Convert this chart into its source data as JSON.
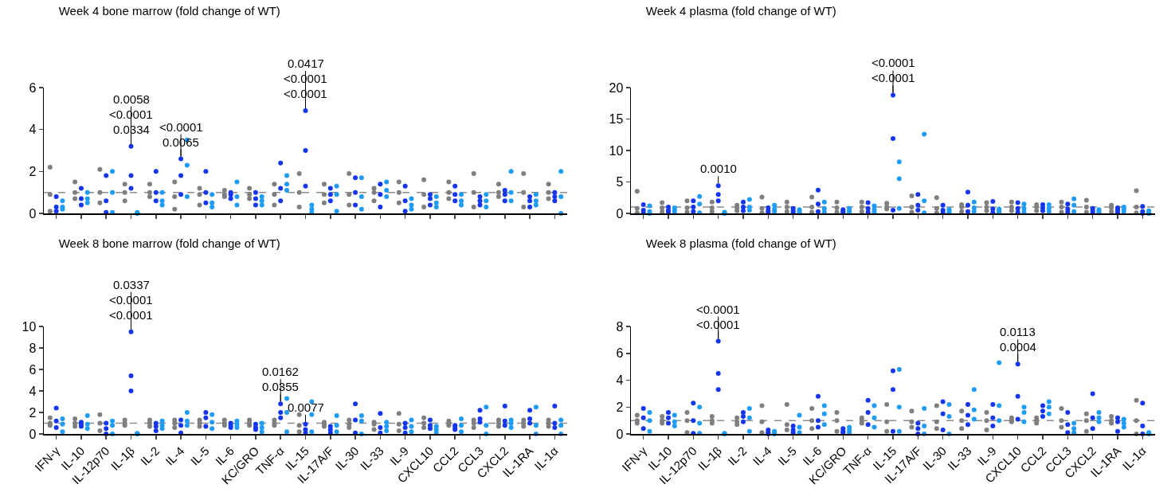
{
  "chart_data": [
    {
      "type": "scatter",
      "title": "Week 4 bone marrow (fold change of WT)",
      "tick_labels": "y",
      "marker": "circle",
      "ylim": [
        0,
        6
      ],
      "yticks": [
        0,
        2,
        4,
        6
      ],
      "categories": [
        "IFN-γ",
        "IL-10",
        "IL-12p70",
        "IL-1β",
        "IL-2",
        "IL-4",
        "IL-5",
        "IL-6",
        "KC/GRO",
        "TNF-α",
        "IL-15",
        "IL-17A/F",
        "IL-30",
        "IL-33",
        "IL-9",
        "CXCL10",
        "CCL2",
        "CCL3",
        "CXCL2",
        "IL-1RA",
        "IL-1α"
      ],
      "ref_lines": [
        {
          "axis": "y",
          "value": 1,
          "color": "#8c8c8c",
          "line_style": "dashed"
        }
      ],
      "annotations": [
        {
          "text": "0.0334",
          "x": "IL-1β",
          "y": 3.2
        },
        {
          "text": "<0.0001",
          "x": "IL-1β",
          "y": 3.2
        },
        {
          "text": "0.0058",
          "x": "IL-1β",
          "y": 3.2
        },
        {
          "text": "0.0065",
          "x": "IL-4",
          "y": 2.6
        },
        {
          "text": "<0.0001",
          "x": "IL-4",
          "y": 2.6
        },
        {
          "text": "<0.0001",
          "x": "IL-15",
          "y": 4.9
        },
        {
          "text": "<0.0001",
          "x": "IL-15",
          "y": 4.9
        },
        {
          "text": "0.0417",
          "x": "IL-15",
          "y": 4.9
        }
      ],
      "series": [
        {
          "color": "#7f7f7f",
          "x": [
            "IFN-γ",
            "IFN-γ",
            "IFN-γ",
            "IL-10",
            "IL-10",
            "IL-10",
            "IL-12p70",
            "IL-12p70",
            "IL-12p70",
            "IL-1β",
            "IL-1β",
            "IL-1β",
            "IL-2",
            "IL-2",
            "IL-2",
            "IL-4",
            "IL-4",
            "IL-4",
            "IL-5",
            "IL-5",
            "IL-5",
            "IL-6",
            "IL-6",
            "IL-6",
            "KC/GRO",
            "KC/GRO",
            "KC/GRO",
            "TNF-α",
            "TNF-α",
            "TNF-α",
            "IL-15",
            "IL-15",
            "IL-15",
            "IL-17A/F",
            "IL-17A/F",
            "IL-17A/F",
            "IL-30",
            "IL-30",
            "IL-30",
            "IL-33",
            "IL-33",
            "IL-33",
            "IL-9",
            "IL-9",
            "IL-9",
            "CXCL10",
            "CXCL10",
            "CXCL10",
            "CCL2",
            "CCL2",
            "CCL2",
            "CCL3",
            "CCL3",
            "CCL3",
            "CXCL2",
            "CXCL2",
            "CXCL2",
            "IL-1RA",
            "IL-1RA",
            "IL-1RA",
            "IL-1α",
            "IL-1α",
            "IL-1α"
          ],
          "values": [
            2.2,
            0.9,
            0.1,
            1.5,
            1.0,
            0.7,
            2.1,
            1.0,
            0.5,
            1.4,
            1.0,
            0.6,
            1.4,
            1.0,
            0.8,
            1.5,
            0.8,
            0.2,
            1.2,
            0.9,
            0.4,
            1.1,
            0.9,
            0.8,
            1.2,
            0.9,
            0.7,
            1.4,
            0.9,
            0.4,
            1.9,
            1.0,
            0.3,
            1.4,
            0.9,
            0.5,
            1.9,
            0.9,
            0.4,
            1.2,
            1.0,
            0.6,
            1.5,
            1.0,
            0.5,
            1.6,
            0.9,
            0.3,
            1.5,
            1.0,
            0.7,
            1.9,
            1.0,
            0.3,
            1.4,
            1.0,
            0.8,
            1.9,
            1.0,
            0.3,
            1.4,
            1.0,
            0.7
          ]
        },
        {
          "color": "#1536f0",
          "x": [
            "IFN-γ",
            "IFN-γ",
            "IFN-γ",
            "IL-10",
            "IL-10",
            "IL-10",
            "IL-12p70",
            "IL-12p70",
            "IL-12p70",
            "IL-1β",
            "IL-1β",
            "IL-1β",
            "IL-2",
            "IL-2",
            "IL-2",
            "IL-4",
            "IL-4",
            "IL-4",
            "IL-5",
            "IL-5",
            "IL-5",
            "IL-6",
            "IL-6",
            "IL-6",
            "KC/GRO",
            "KC/GRO",
            "KC/GRO",
            "TNF-α",
            "TNF-α",
            "TNF-α",
            "IL-15",
            "IL-15",
            "IL-15",
            "IL-17A/F",
            "IL-17A/F",
            "IL-17A/F",
            "IL-30",
            "IL-30",
            "IL-30",
            "IL-33",
            "IL-33",
            "IL-33",
            "IL-9",
            "IL-9",
            "IL-9",
            "CXCL10",
            "CXCL10",
            "CXCL10",
            "CCL2",
            "CCL2",
            "CCL2",
            "CCL3",
            "CCL3",
            "CCL3",
            "CXCL2",
            "CXCL2",
            "CXCL2",
            "IL-1RA",
            "IL-1RA",
            "IL-1RA",
            "IL-1α",
            "IL-1α",
            "IL-1α"
          ],
          "values": [
            0.8,
            0.3,
            0.1,
            1.2,
            0.7,
            0.4,
            1.8,
            0.6,
            0.05,
            3.2,
            1.8,
            1.2,
            2.0,
            1.0,
            0.6,
            2.6,
            1.8,
            0.9,
            2.0,
            1.0,
            0.5,
            1.0,
            0.9,
            0.7,
            1.0,
            0.7,
            0.4,
            2.4,
            1.2,
            0.6,
            4.9,
            3.0,
            1.3,
            1.2,
            0.9,
            0.6,
            1.7,
            1.0,
            0.4,
            1.4,
            0.9,
            0.3,
            1.3,
            0.6,
            0.1,
            0.9,
            0.7,
            0.4,
            1.3,
            0.9,
            0.6,
            0.8,
            0.6,
            0.4,
            1.1,
            0.9,
            0.6,
            0.8,
            0.6,
            0.3,
            1.0,
            0.8,
            0.6
          ]
        },
        {
          "color": "#1f9cf5",
          "x": [
            "IFN-γ",
            "IFN-γ",
            "IFN-γ",
            "IL-10",
            "IL-10",
            "IL-10",
            "IL-12p70",
            "IL-12p70",
            "IL-12p70",
            "IL-1β",
            "IL-1β",
            "IL-1β",
            "IL-2",
            "IL-2",
            "IL-2",
            "IL-4",
            "IL-4",
            "IL-4",
            "IL-5",
            "IL-5",
            "IL-5",
            "IL-6",
            "IL-6",
            "IL-6",
            "KC/GRO",
            "KC/GRO",
            "KC/GRO",
            "TNF-α",
            "TNF-α",
            "TNF-α",
            "IL-15",
            "IL-15",
            "IL-15",
            "IL-17A/F",
            "IL-17A/F",
            "IL-17A/F",
            "IL-30",
            "IL-30",
            "IL-30",
            "IL-33",
            "IL-33",
            "IL-33",
            "IL-9",
            "IL-9",
            "IL-9",
            "CXCL10",
            "CXCL10",
            "CXCL10",
            "CCL2",
            "CCL2",
            "CCL2",
            "CCL3",
            "CCL3",
            "CCL3",
            "CXCL2",
            "CXCL2",
            "CXCL2",
            "IL-1RA",
            "IL-1RA",
            "IL-1RA",
            "IL-1α",
            "IL-1α",
            "IL-1α"
          ],
          "values": [
            0.6,
            0.3,
            0.2,
            1.0,
            0.7,
            0.5,
            2.0,
            1.0,
            0.05,
            0.05,
            0.02,
            0.0,
            1.0,
            0.6,
            0.4,
            3.5,
            2.3,
            0.8,
            0.9,
            0.5,
            0.3,
            1.5,
            0.8,
            0.4,
            0.8,
            0.6,
            0.4,
            1.8,
            1.4,
            1.1,
            0.4,
            0.2,
            0.05,
            1.3,
            0.9,
            0.1,
            1.7,
            0.8,
            0.2,
            1.5,
            1.1,
            0.8,
            0.7,
            0.4,
            0.2,
            0.8,
            0.5,
            0.3,
            0.9,
            0.6,
            0.4,
            0.9,
            0.6,
            0.3,
            2.0,
            1.0,
            0.6,
            0.9,
            0.6,
            0.4,
            2.0,
            0.8,
            0.0
          ]
        }
      ]
    },
    {
      "type": "scatter",
      "title": "Week 4 plasma (fold change of WT)",
      "tick_labels": "y",
      "marker": "circle",
      "ylim": [
        0,
        20
      ],
      "yticks": [
        0,
        5,
        10,
        15,
        20
      ],
      "categories": [
        "IFN-γ",
        "IL-10",
        "IL-12p70",
        "IL-1β",
        "IL-2",
        "IL-4",
        "IL-5",
        "IL-6",
        "KC/GRO",
        "TNF-α",
        "IL-15",
        "IL-17A/F",
        "IL-30",
        "IL-33",
        "IL-9",
        "CXCL10",
        "CCL2",
        "CCL3",
        "CXCL2",
        "IL-1RA",
        "IL-1α"
      ],
      "ref_lines": [
        {
          "axis": "y",
          "value": 1,
          "color": "#8c8c8c",
          "line_style": "dashed"
        }
      ],
      "annotations": [
        {
          "text": "0.0010",
          "x": "IL-1β",
          "y": 4.4
        },
        {
          "text": "<0.0001",
          "x": "IL-15",
          "y": 18.8
        },
        {
          "text": "<0.0001",
          "x": "IL-15",
          "y": 18.8
        }
      ],
      "series": [
        {
          "color": "#7f7f7f",
          "x": [
            "IFN-γ",
            "IFN-γ",
            "IFN-γ",
            "IL-10",
            "IL-10",
            "IL-10",
            "IL-12p70",
            "IL-12p70",
            "IL-12p70",
            "IL-1β",
            "IL-1β",
            "IL-1β",
            "IL-2",
            "IL-2",
            "IL-2",
            "IL-4",
            "IL-4",
            "IL-4",
            "IL-5",
            "IL-5",
            "IL-5",
            "IL-6",
            "IL-6",
            "IL-6",
            "KC/GRO",
            "KC/GRO",
            "KC/GRO",
            "TNF-α",
            "TNF-α",
            "TNF-α",
            "IL-15",
            "IL-15",
            "IL-15",
            "IL-17A/F",
            "IL-17A/F",
            "IL-17A/F",
            "IL-30",
            "IL-30",
            "IL-30",
            "IL-33",
            "IL-33",
            "IL-33",
            "IL-9",
            "IL-9",
            "IL-9",
            "CXCL10",
            "CXCL10",
            "CXCL10",
            "CCL2",
            "CCL2",
            "CCL2",
            "CCL3",
            "CCL3",
            "CCL3",
            "CXCL2",
            "CXCL2",
            "CXCL2",
            "IL-1RA",
            "IL-1RA",
            "IL-1RA",
            "IL-1α",
            "IL-1α",
            "IL-1α"
          ],
          "values": [
            3.5,
            0.8,
            0.1,
            1.7,
            0.9,
            0.3,
            2.0,
            0.9,
            0.2,
            1.8,
            0.9,
            0.3,
            1.3,
            0.9,
            0.4,
            2.6,
            0.8,
            0.1,
            1.8,
            1.0,
            0.3,
            2.6,
            1.0,
            0.2,
            1.8,
            0.9,
            0.2,
            1.8,
            1.0,
            0.3,
            1.6,
            1.0,
            0.7,
            2.8,
            1.0,
            0.2,
            2.5,
            0.8,
            0.1,
            1.4,
            1.0,
            0.3,
            1.7,
            1.0,
            0.4,
            1.8,
            1.0,
            0.4,
            1.4,
            1.0,
            0.4,
            1.8,
            1.0,
            0.2,
            2.1,
            1.0,
            0.2,
            1.3,
            0.9,
            0.3,
            3.6,
            1.0,
            0.1
          ]
        },
        {
          "color": "#1536f0",
          "x": [
            "IFN-γ",
            "IFN-γ",
            "IFN-γ",
            "IL-10",
            "IL-10",
            "IL-10",
            "IL-12p70",
            "IL-12p70",
            "IL-12p70",
            "IL-1β",
            "IL-1β",
            "IL-1β",
            "IL-2",
            "IL-2",
            "IL-2",
            "IL-4",
            "IL-4",
            "IL-4",
            "IL-5",
            "IL-5",
            "IL-5",
            "IL-6",
            "IL-6",
            "IL-6",
            "KC/GRO",
            "KC/GRO",
            "KC/GRO",
            "TNF-α",
            "TNF-α",
            "TNF-α",
            "IL-15",
            "IL-15",
            "IL-15",
            "IL-17A/F",
            "IL-17A/F",
            "IL-17A/F",
            "IL-30",
            "IL-30",
            "IL-30",
            "IL-33",
            "IL-33",
            "IL-33",
            "IL-9",
            "IL-9",
            "IL-9",
            "CXCL10",
            "CXCL10",
            "CXCL10",
            "CCL2",
            "CCL2",
            "CCL2",
            "CCL3",
            "CCL3",
            "CCL3",
            "CXCL2",
            "CXCL2",
            "CXCL2",
            "IL-1RA",
            "IL-1RA",
            "IL-1RA",
            "IL-1α",
            "IL-1α",
            "IL-1α"
          ],
          "values": [
            1.4,
            0.5,
            0.1,
            1.0,
            0.5,
            0.2,
            2.0,
            1.0,
            0.3,
            4.4,
            3.0,
            2.0,
            1.8,
            1.0,
            0.4,
            0.9,
            0.4,
            0.1,
            0.8,
            0.4,
            0.1,
            3.7,
            1.5,
            0.3,
            0.6,
            0.3,
            0.1,
            1.7,
            0.8,
            0.2,
            18.8,
            11.9,
            0.5,
            3.0,
            1.3,
            0.5,
            1.3,
            0.5,
            0.1,
            3.4,
            1.3,
            0.3,
            1.9,
            0.7,
            0.1,
            1.7,
            0.8,
            0.2,
            1.4,
            0.9,
            0.4,
            1.5,
            0.7,
            0.2,
            0.8,
            0.4,
            0.1,
            0.9,
            0.5,
            0.1,
            1.1,
            0.3,
            0.0
          ]
        },
        {
          "color": "#1f9cf5",
          "x": [
            "IFN-γ",
            "IFN-γ",
            "IFN-γ",
            "IL-10",
            "IL-10",
            "IL-10",
            "IL-12p70",
            "IL-12p70",
            "IL-12p70",
            "IL-1β",
            "IL-1β",
            "IL-1β",
            "IL-2",
            "IL-2",
            "IL-2",
            "IL-4",
            "IL-4",
            "IL-4",
            "IL-5",
            "IL-5",
            "IL-5",
            "IL-6",
            "IL-6",
            "IL-6",
            "KC/GRO",
            "KC/GRO",
            "KC/GRO",
            "TNF-α",
            "TNF-α",
            "TNF-α",
            "IL-15",
            "IL-15",
            "IL-15",
            "IL-17A/F",
            "IL-17A/F",
            "IL-17A/F",
            "IL-30",
            "IL-30",
            "IL-30",
            "IL-33",
            "IL-33",
            "IL-33",
            "IL-9",
            "IL-9",
            "IL-9",
            "CXCL10",
            "CXCL10",
            "CXCL10",
            "CCL2",
            "CCL2",
            "CCL2",
            "CCL3",
            "CCL3",
            "CCL3",
            "CXCL2",
            "CXCL2",
            "CXCL2",
            "IL-1RA",
            "IL-1RA",
            "IL-1RA",
            "IL-1α",
            "IL-1α",
            "IL-1α"
          ],
          "values": [
            1.2,
            0.3,
            0.0,
            0.9,
            0.5,
            0.1,
            2.7,
            1.5,
            0.1,
            0.2,
            0.1,
            0.0,
            2.2,
            1.0,
            0.5,
            1.3,
            0.7,
            0.3,
            0.6,
            0.3,
            0.1,
            1.8,
            0.8,
            0.2,
            0.8,
            0.4,
            0.1,
            1.2,
            0.6,
            0.2,
            8.2,
            5.5,
            0.8,
            12.6,
            2.0,
            0.1,
            0.6,
            0.3,
            0.1,
            1.8,
            0.9,
            0.3,
            0.7,
            0.4,
            0.1,
            1.5,
            0.8,
            0.2,
            1.4,
            0.8,
            0.3,
            2.3,
            1.3,
            0.3,
            0.6,
            0.3,
            0.1,
            1.0,
            0.7,
            0.3,
            0.4,
            0.1,
            0.0
          ]
        }
      ]
    },
    {
      "type": "scatter",
      "title": "Week 8 bone marrow (fold change of WT)",
      "marker": "circle",
      "ylim": [
        0,
        10
      ],
      "yticks": [
        0,
        2,
        4,
        6,
        8,
        10
      ],
      "categories": [
        "IFN-γ",
        "IL-10",
        "IL-12p70",
        "IL-1β",
        "IL-2",
        "IL-4",
        "IL-5",
        "IL-6",
        "KC/GRO",
        "TNF-α",
        "IL-15",
        "IL-17A/F",
        "IL-30",
        "IL-33",
        "IL-9",
        "CXCL10",
        "CCL2",
        "CCL3",
        "CXCL2",
        "IL-1RA",
        "IL-1α"
      ],
      "ref_lines": [
        {
          "axis": "y",
          "value": 1,
          "color": "#8c8c8c",
          "line_style": "dashed"
        }
      ],
      "annotations": [
        {
          "text": "<0.0001",
          "x": "IL-1β",
          "y": 9.5
        },
        {
          "text": "<0.0001",
          "x": "IL-1β",
          "y": 9.5
        },
        {
          "text": "0.0337",
          "x": "IL-1β",
          "y": 9.5
        },
        {
          "text": "0.0355",
          "x": "TNF-α",
          "y": 2.8
        },
        {
          "text": "0.0162",
          "x": "TNF-α",
          "y": 2.8
        },
        {
          "text": "0.0077",
          "x": "IL-15",
          "y": 0.9
        }
      ],
      "series": [
        {
          "color": "#7f7f7f",
          "x": [
            "IFN-γ",
            "IFN-γ",
            "IFN-γ",
            "IL-10",
            "IL-10",
            "IL-10",
            "IL-12p70",
            "IL-12p70",
            "IL-12p70",
            "IL-1β",
            "IL-1β",
            "IL-1β",
            "IL-2",
            "IL-2",
            "IL-2",
            "IL-4",
            "IL-4",
            "IL-4",
            "IL-5",
            "IL-5",
            "IL-5",
            "IL-6",
            "IL-6",
            "IL-6",
            "KC/GRO",
            "KC/GRO",
            "KC/GRO",
            "TNF-α",
            "TNF-α",
            "TNF-α",
            "IL-15",
            "IL-15",
            "IL-15",
            "IL-17A/F",
            "IL-17A/F",
            "IL-17A/F",
            "IL-30",
            "IL-30",
            "IL-30",
            "IL-33",
            "IL-33",
            "IL-33",
            "IL-9",
            "IL-9",
            "IL-9",
            "CXCL10",
            "CXCL10",
            "CXCL10",
            "CCL2",
            "CCL2",
            "CCL2",
            "CCL3",
            "CCL3",
            "CCL3",
            "CXCL2",
            "CXCL2",
            "CXCL2",
            "IL-1RA",
            "IL-1RA",
            "IL-1RA",
            "IL-1α",
            "IL-1α",
            "IL-1α"
          ],
          "values": [
            1.5,
            1.0,
            0.8,
            1.4,
            1.0,
            0.7,
            1.8,
            1.0,
            0.3,
            1.3,
            1.0,
            0.8,
            1.3,
            1.0,
            0.7,
            1.3,
            1.0,
            0.6,
            1.3,
            1.0,
            0.7,
            1.3,
            1.0,
            0.8,
            1.3,
            1.0,
            0.8,
            1.3,
            1.0,
            0.8,
            1.8,
            0.8,
            0.2,
            1.1,
            0.9,
            0.7,
            1.3,
            0.9,
            0.6,
            1.1,
            0.9,
            0.4,
            1.9,
            0.9,
            0.3,
            1.5,
            1.0,
            0.6,
            1.2,
            1.0,
            0.8,
            1.3,
            1.0,
            0.6,
            1.3,
            1.0,
            0.7,
            1.3,
            1.0,
            0.7,
            1.3,
            1.0,
            0.7
          ]
        },
        {
          "color": "#1536f0",
          "x": [
            "IFN-γ",
            "IFN-γ",
            "IFN-γ",
            "IL-10",
            "IL-10",
            "IL-10",
            "IL-12p70",
            "IL-12p70",
            "IL-12p70",
            "IL-1β",
            "IL-1β",
            "IL-1β",
            "IL-2",
            "IL-2",
            "IL-2",
            "IL-4",
            "IL-4",
            "IL-4",
            "IL-5",
            "IL-5",
            "IL-5",
            "IL-6",
            "IL-6",
            "IL-6",
            "KC/GRO",
            "KC/GRO",
            "KC/GRO",
            "TNF-α",
            "TNF-α",
            "TNF-α",
            "IL-15",
            "IL-15",
            "IL-15",
            "IL-17A/F",
            "IL-17A/F",
            "IL-17A/F",
            "IL-30",
            "IL-30",
            "IL-30",
            "IL-33",
            "IL-33",
            "IL-33",
            "IL-9",
            "IL-9",
            "IL-9",
            "CXCL10",
            "CXCL10",
            "CXCL10",
            "CCL2",
            "CCL2",
            "CCL2",
            "CCL3",
            "CCL3",
            "CCL3",
            "CXCL2",
            "CXCL2",
            "CXCL2",
            "IL-1RA",
            "IL-1RA",
            "IL-1RA",
            "IL-1α",
            "IL-1α",
            "IL-1α"
          ],
          "values": [
            2.4,
            1.2,
            0.6,
            1.1,
            0.9,
            0.7,
            1.0,
            0.5,
            0.0,
            9.5,
            5.4,
            4.0,
            1.0,
            0.7,
            0.3,
            1.3,
            0.8,
            0.1,
            2.0,
            1.5,
            0.7,
            1.0,
            0.8,
            0.6,
            0.9,
            0.6,
            0.4,
            2.8,
            2.0,
            1.5,
            0.9,
            0.4,
            0.1,
            0.7,
            0.4,
            0.1,
            2.8,
            1.3,
            0.1,
            1.9,
            0.6,
            0.1,
            1.0,
            0.6,
            0.1,
            1.3,
            0.8,
            0.5,
            0.8,
            0.6,
            0.4,
            2.2,
            1.4,
            1.1,
            2.6,
            1.2,
            0.8,
            2.2,
            1.4,
            1.0,
            2.6,
            1.0,
            0.6
          ]
        },
        {
          "color": "#1f9cf5",
          "x": [
            "IFN-γ",
            "IFN-γ",
            "IFN-γ",
            "IL-10",
            "IL-10",
            "IL-10",
            "IL-12p70",
            "IL-12p70",
            "IL-12p70",
            "IL-1β",
            "IL-1β",
            "IL-1β",
            "IL-2",
            "IL-2",
            "IL-2",
            "IL-4",
            "IL-4",
            "IL-4",
            "IL-5",
            "IL-5",
            "IL-5",
            "IL-6",
            "IL-6",
            "IL-6",
            "KC/GRO",
            "KC/GRO",
            "KC/GRO",
            "TNF-α",
            "TNF-α",
            "TNF-α",
            "IL-15",
            "IL-15",
            "IL-15",
            "IL-17A/F",
            "IL-17A/F",
            "IL-17A/F",
            "IL-30",
            "IL-30",
            "IL-30",
            "IL-33",
            "IL-33",
            "IL-33",
            "IL-9",
            "IL-9",
            "IL-9",
            "CXCL10",
            "CXCL10",
            "CXCL10",
            "CCL2",
            "CCL2",
            "CCL2",
            "CCL3",
            "CCL3",
            "CCL3",
            "CXCL2",
            "CXCL2",
            "CXCL2",
            "IL-1RA",
            "IL-1RA",
            "IL-1RA",
            "IL-1α",
            "IL-1α",
            "IL-1α"
          ],
          "values": [
            1.4,
            0.9,
            0.2,
            1.7,
            0.9,
            0.5,
            1.2,
            0.8,
            0.0,
            0.05,
            0.02,
            0.0,
            1.2,
            0.8,
            0.5,
            2.0,
            1.2,
            0.8,
            1.8,
            1.1,
            0.5,
            1.2,
            0.9,
            0.6,
            1.0,
            0.6,
            0.2,
            3.3,
            2.0,
            0.2,
            3.0,
            1.8,
            0.2,
            1.7,
            0.8,
            0.2,
            1.7,
            1.2,
            0.0,
            1.1,
            0.7,
            0.3,
            1.3,
            0.7,
            0.2,
            0.7,
            0.4,
            0.1,
            1.4,
            0.8,
            0.2,
            2.5,
            0.8,
            0.0,
            1.3,
            1.0,
            0.6,
            2.5,
            0.8,
            0.0,
            1.3,
            0.8,
            0.0
          ]
        }
      ]
    },
    {
      "type": "scatter",
      "title": "Week 8 plasma (fold change of WT)",
      "marker": "circle",
      "ylim": [
        0,
        8
      ],
      "yticks": [
        0,
        2,
        4,
        6,
        8
      ],
      "categories": [
        "IFN-γ",
        "IL-10",
        "IL-12p70",
        "IL-1β",
        "IL-2",
        "IL-4",
        "IL-5",
        "IL-6",
        "KC/GRO",
        "TNF-α",
        "IL-15",
        "IL-17A/F",
        "IL-30",
        "IL-33",
        "IL-9",
        "CXCL10",
        "CCL2",
        "CCL3",
        "CXCL2",
        "IL-1RA",
        "IL-1α"
      ],
      "ref_lines": [
        {
          "axis": "y",
          "value": 1,
          "color": "#8c8c8c",
          "line_style": "dashed"
        }
      ],
      "annotations": [
        {
          "text": "<0.0001",
          "x": "IL-1β",
          "y": 6.9
        },
        {
          "text": "<0.0001",
          "x": "IL-1β",
          "y": 6.9
        },
        {
          "text": "0.0004",
          "x": "CXCL10",
          "y": 5.2
        },
        {
          "text": "0.0113",
          "x": "CXCL10",
          "y": 5.2
        }
      ],
      "series": [
        {
          "color": "#7f7f7f",
          "x": [
            "IFN-γ",
            "IFN-γ",
            "IFN-γ",
            "IL-10",
            "IL-10",
            "IL-10",
            "IL-12p70",
            "IL-12p70",
            "IL-12p70",
            "IL-1β",
            "IL-1β",
            "IL-1β",
            "IL-2",
            "IL-2",
            "IL-2",
            "IL-4",
            "IL-4",
            "IL-4",
            "IL-5",
            "IL-5",
            "IL-5",
            "IL-6",
            "IL-6",
            "IL-6",
            "KC/GRO",
            "KC/GRO",
            "KC/GRO",
            "TNF-α",
            "TNF-α",
            "TNF-α",
            "IL-15",
            "IL-15",
            "IL-15",
            "IL-17A/F",
            "IL-17A/F",
            "IL-17A/F",
            "IL-30",
            "IL-30",
            "IL-30",
            "IL-33",
            "IL-33",
            "IL-33",
            "IL-9",
            "IL-9",
            "IL-9",
            "CXCL10",
            "CXCL10",
            "CXCL10",
            "CCL2",
            "CCL2",
            "CCL2",
            "CCL3",
            "CCL3",
            "CCL3",
            "CXCL2",
            "CXCL2",
            "CXCL2",
            "IL-1RA",
            "IL-1RA",
            "IL-1RA",
            "IL-1α",
            "IL-1α",
            "IL-1α"
          ],
          "values": [
            1.4,
            1.0,
            0.8,
            1.3,
            1.0,
            0.8,
            1.6,
            1.0,
            0.1,
            1.3,
            1.0,
            0.8,
            1.2,
            0.9,
            0.7,
            2.1,
            0.9,
            0.1,
            2.2,
            0.7,
            0.3,
            1.9,
            1.0,
            0.4,
            1.6,
            1.0,
            0.2,
            1.2,
            1.0,
            0.8,
            2.2,
            0.9,
            0.2,
            1.7,
            0.9,
            0.5,
            2.1,
            0.9,
            0.4,
            1.7,
            1.0,
            0.4,
            1.6,
            1.0,
            0.3,
            1.2,
            1.0,
            0.9,
            1.2,
            1.0,
            0.8,
            1.9,
            1.0,
            0.5,
            1.5,
            1.0,
            0.2,
            1.3,
            1.0,
            0.8,
            2.5,
            1.0,
            0.0
          ]
        },
        {
          "color": "#1536f0",
          "x": [
            "IFN-γ",
            "IFN-γ",
            "IFN-γ",
            "IL-10",
            "IL-10",
            "IL-10",
            "IL-12p70",
            "IL-12p70",
            "IL-12p70",
            "IL-1β",
            "IL-1β",
            "IL-1β",
            "IL-2",
            "IL-2",
            "IL-2",
            "IL-4",
            "IL-4",
            "IL-4",
            "IL-5",
            "IL-5",
            "IL-5",
            "IL-6",
            "IL-6",
            "IL-6",
            "KC/GRO",
            "KC/GRO",
            "KC/GRO",
            "TNF-α",
            "TNF-α",
            "TNF-α",
            "IL-15",
            "IL-15",
            "IL-15",
            "IL-17A/F",
            "IL-17A/F",
            "IL-17A/F",
            "IL-30",
            "IL-30",
            "IL-30",
            "IL-33",
            "IL-33",
            "IL-33",
            "IL-9",
            "IL-9",
            "IL-9",
            "CXCL10",
            "CXCL10",
            "CXCL10",
            "CCL2",
            "CCL2",
            "CCL2",
            "CCL3",
            "CCL3",
            "CCL3",
            "CXCL2",
            "CXCL2",
            "CXCL2",
            "IL-1RA",
            "IL-1RA",
            "IL-1RA",
            "IL-1α",
            "IL-1α",
            "IL-1α"
          ],
          "values": [
            1.9,
            1.2,
            0.4,
            1.6,
            1.2,
            0.8,
            2.3,
            1.0,
            0.05,
            6.9,
            4.5,
            3.3,
            1.6,
            1.3,
            0.9,
            0.3,
            0.1,
            0.0,
            0.6,
            0.3,
            0.1,
            2.8,
            1.0,
            0.5,
            0.4,
            0.2,
            0.1,
            2.5,
            1.6,
            0.7,
            4.7,
            3.3,
            0.2,
            0.8,
            0.4,
            0.0,
            2.4,
            1.5,
            0.3,
            2.2,
            1.4,
            0.7,
            2.2,
            1.2,
            0.6,
            5.2,
            2.8,
            1.1,
            2.1,
            1.7,
            1.3,
            1.6,
            0.7,
            0.1,
            3.0,
            1.2,
            0.4,
            1.2,
            0.9,
            0.2,
            2.3,
            0.6,
            0.0
          ]
        },
        {
          "color": "#1f9cf5",
          "x": [
            "IFN-γ",
            "IFN-γ",
            "IFN-γ",
            "IL-10",
            "IL-10",
            "IL-10",
            "IL-12p70",
            "IL-12p70",
            "IL-12p70",
            "IL-1β",
            "IL-1β",
            "IL-1β",
            "IL-2",
            "IL-2",
            "IL-2",
            "IL-4",
            "IL-4",
            "IL-4",
            "IL-5",
            "IL-5",
            "IL-5",
            "IL-6",
            "IL-6",
            "IL-6",
            "KC/GRO",
            "KC/GRO",
            "KC/GRO",
            "TNF-α",
            "TNF-α",
            "TNF-α",
            "IL-15",
            "IL-15",
            "IL-15",
            "IL-17A/F",
            "IL-17A/F",
            "IL-17A/F",
            "IL-30",
            "IL-30",
            "IL-30",
            "IL-33",
            "IL-33",
            "IL-33",
            "IL-9",
            "IL-9",
            "IL-9",
            "CXCL10",
            "CXCL10",
            "CXCL10",
            "CCL2",
            "CCL2",
            "CCL2",
            "CCL3",
            "CCL3",
            "CCL3",
            "CXCL2",
            "CXCL2",
            "CXCL2",
            "IL-1RA",
            "IL-1RA",
            "IL-1RA",
            "IL-1α",
            "IL-1α",
            "IL-1α"
          ],
          "values": [
            1.6,
            1.0,
            0.2,
            1.4,
            0.9,
            0.6,
            2.0,
            0.8,
            0.05,
            0.05,
            0.02,
            0.0,
            1.9,
            1.2,
            0.2,
            0.2,
            0.05,
            0.0,
            1.4,
            0.5,
            0.1,
            2.1,
            1.5,
            0.7,
            0.5,
            0.3,
            0.1,
            2.1,
            1.2,
            0.5,
            4.8,
            2.0,
            0.2,
            1.9,
            0.6,
            0.0,
            2.2,
            1.3,
            0.0,
            3.3,
            1.8,
            1.1,
            5.3,
            2.1,
            1.0,
            2.0,
            1.6,
            0.9,
            2.4,
            2.0,
            1.5,
            0.8,
            0.4,
            0.1,
            1.6,
            1.2,
            0.9,
            1.1,
            0.8,
            0.5,
            0.1,
            0.05,
            0.0
          ]
        }
      ]
    }
  ]
}
